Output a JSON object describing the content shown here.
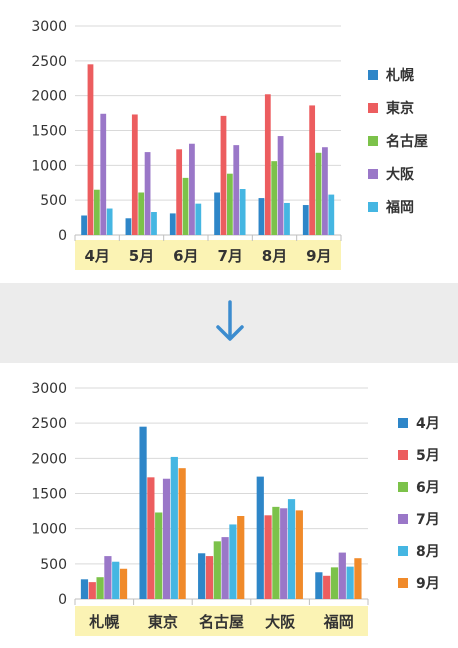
{
  "colors": {
    "blue": "#2e86c8",
    "red": "#ec5d5f",
    "green": "#7cc24a",
    "purple": "#9a77c8",
    "cyan": "#45b6e2",
    "orange": "#f08a2a",
    "label_band": "#fbf3b4",
    "grid": "#d9d9d9",
    "arrow": "#3c8ccf"
  },
  "arrow_icon": "arrow-down-icon",
  "chart_data": [
    {
      "type": "bar",
      "categories": [
        "4月",
        "5月",
        "6月",
        "7月",
        "8月",
        "9月"
      ],
      "series": [
        {
          "name": "札幌",
          "color": "#2e86c8",
          "values": [
            280,
            240,
            310,
            610,
            530,
            430
          ]
        },
        {
          "name": "東京",
          "color": "#ec5d5f",
          "values": [
            2450,
            1730,
            1230,
            1710,
            2020,
            1860
          ]
        },
        {
          "name": "名古屋",
          "color": "#7cc24a",
          "values": [
            650,
            610,
            820,
            880,
            1060,
            1180
          ]
        },
        {
          "name": "大阪",
          "color": "#9a77c8",
          "values": [
            1740,
            1190,
            1310,
            1290,
            1420,
            1260
          ]
        },
        {
          "name": "福岡",
          "color": "#45b6e2",
          "values": [
            380,
            330,
            450,
            660,
            460,
            580
          ]
        }
      ],
      "ylim": [
        0,
        3000
      ],
      "yticks": [
        "0",
        "500",
        "1000",
        "1500",
        "2000",
        "2500",
        "3000"
      ],
      "grid": true,
      "legend": "right"
    },
    {
      "type": "bar",
      "categories": [
        "札幌",
        "東京",
        "名古屋",
        "大阪",
        "福岡"
      ],
      "series": [
        {
          "name": "4月",
          "color": "#2e86c8",
          "values": [
            280,
            2450,
            650,
            1740,
            380
          ]
        },
        {
          "name": "5月",
          "color": "#ec5d5f",
          "values": [
            240,
            1730,
            610,
            1190,
            330
          ]
        },
        {
          "name": "6月",
          "color": "#7cc24a",
          "values": [
            310,
            1230,
            820,
            1310,
            450
          ]
        },
        {
          "name": "7月",
          "color": "#9a77c8",
          "values": [
            610,
            1710,
            880,
            1290,
            660
          ]
        },
        {
          "name": "8月",
          "color": "#45b6e2",
          "values": [
            530,
            2020,
            1060,
            1420,
            460
          ]
        },
        {
          "name": "9月",
          "color": "#f08a2a",
          "values": [
            430,
            1860,
            1180,
            1260,
            580
          ]
        }
      ],
      "ylim": [
        0,
        3000
      ],
      "yticks": [
        "0",
        "500",
        "1000",
        "1500",
        "2000",
        "2500",
        "3000"
      ],
      "grid": true,
      "legend": "right"
    }
  ]
}
